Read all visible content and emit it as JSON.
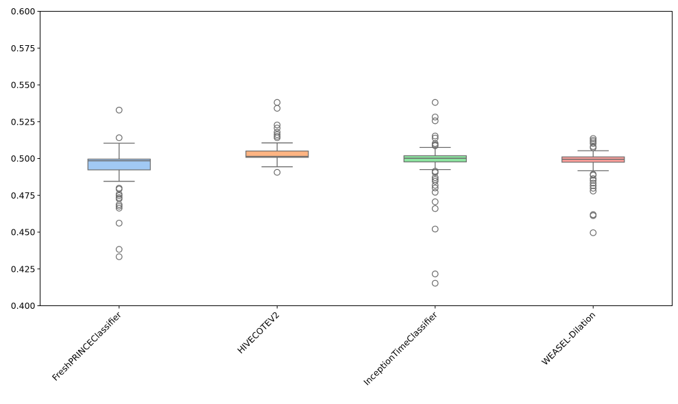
{
  "chart_data": {
    "type": "box",
    "title": "",
    "xlabel": "",
    "ylabel": "",
    "ylim": [
      0.4,
      0.6
    ],
    "yticks": [
      "0.400",
      "0.425",
      "0.450",
      "0.475",
      "0.500",
      "0.525",
      "0.550",
      "0.575",
      "0.600"
    ],
    "categories": [
      "FreshPRINCEClassifier",
      "HIVECOTEV2",
      "InceptionTimeClassifier",
      "WEASEL-Dilation"
    ],
    "colors": [
      "#a1c9f4",
      "#ffb482",
      "#8de5a1",
      "#ff9f9b"
    ],
    "outline_color": "#6b6b6b",
    "boxes": [
      {
        "whislo": 0.4845,
        "q1": 0.4923,
        "med": 0.4985,
        "q3": 0.4996,
        "whishi": 0.5104,
        "fliers": [
          0.5329,
          0.5141,
          0.4799,
          0.4792,
          0.4758,
          0.4748,
          0.4734,
          0.4726,
          0.4687,
          0.4676,
          0.4663,
          0.4561,
          0.4383,
          0.4333
        ]
      },
      {
        "whislo": 0.4944,
        "q1": 0.5008,
        "med": 0.5014,
        "q3": 0.5051,
        "whishi": 0.5106,
        "fliers": [
          0.5381,
          0.5341,
          0.5228,
          0.5207,
          0.5179,
          0.5163,
          0.5151,
          0.5141,
          0.4906
        ]
      },
      {
        "whislo": 0.4925,
        "q1": 0.4977,
        "med": 0.5002,
        "q3": 0.5019,
        "whishi": 0.5075,
        "fliers": [
          0.5381,
          0.5282,
          0.5256,
          0.5153,
          0.5139,
          0.5102,
          0.5093,
          0.5087,
          0.4914,
          0.4905,
          0.4871,
          0.4858,
          0.4846,
          0.4818,
          0.48,
          0.4771,
          0.4706,
          0.466,
          0.4521,
          0.4216,
          0.4153
        ]
      },
      {
        "whislo": 0.4917,
        "q1": 0.4975,
        "med": 0.4995,
        "q3": 0.5011,
        "whishi": 0.5053,
        "fliers": [
          0.5136,
          0.5124,
          0.5114,
          0.5103,
          0.5081,
          0.5073,
          0.4893,
          0.4887,
          0.4863,
          0.4851,
          0.4833,
          0.4815,
          0.4798,
          0.4779,
          0.4619,
          0.4612,
          0.4496
        ]
      }
    ]
  }
}
